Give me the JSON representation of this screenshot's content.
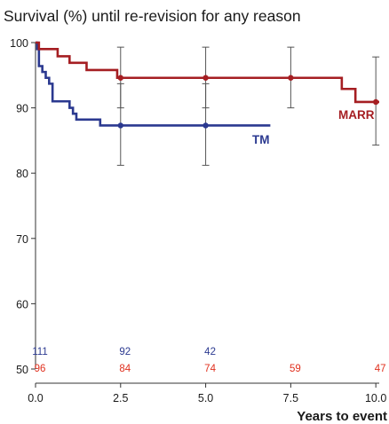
{
  "chart_data": {
    "type": "line",
    "title": "Survival (%) until re-revision for any reason",
    "xlabel": "Years to event",
    "ylabel": "",
    "xlim": [
      0,
      10.1
    ],
    "ylim": [
      50,
      100
    ],
    "xticks": [
      0,
      2.5,
      5,
      7.5,
      10
    ],
    "xtick_labels": [
      "0.0",
      "2.5",
      "5.0",
      "7.5",
      "10.0"
    ],
    "yticks": [
      50,
      60,
      70,
      80,
      90,
      100
    ],
    "ytick_labels": [
      "50",
      "60",
      "70",
      "80",
      "90",
      "100"
    ],
    "grid": false,
    "series": [
      {
        "name": "TM",
        "color": "#2b3990",
        "steps": [
          [
            0,
            100
          ],
          [
            0.05,
            99
          ],
          [
            0.1,
            96.4
          ],
          [
            0.2,
            95.5
          ],
          [
            0.3,
            94.6
          ],
          [
            0.4,
            93.7
          ],
          [
            0.5,
            91.0
          ],
          [
            1.0,
            90.0
          ],
          [
            1.1,
            89.1
          ],
          [
            1.2,
            88.2
          ],
          [
            1.9,
            87.3
          ],
          [
            6.9,
            87.3
          ]
        ],
        "points": [
          {
            "x": 2.5,
            "y": 87.3,
            "lower": 81.2,
            "upper": 93.7
          },
          {
            "x": 5.0,
            "y": 87.3,
            "lower": 81.2,
            "upper": 93.7
          }
        ]
      },
      {
        "name": "MARR",
        "color": "#a51e22",
        "steps": [
          [
            0,
            100
          ],
          [
            0.1,
            99.0
          ],
          [
            0.65,
            97.9
          ],
          [
            1.0,
            96.9
          ],
          [
            1.5,
            95.8
          ],
          [
            2.4,
            94.6
          ],
          [
            9.0,
            92.9
          ],
          [
            9.4,
            90.9
          ],
          [
            10.1,
            90.9
          ]
        ],
        "points": [
          {
            "x": 2.5,
            "y": 94.6,
            "lower": 90.0,
            "upper": 99.3
          },
          {
            "x": 5.0,
            "y": 94.6,
            "lower": 90.0,
            "upper": 99.3
          },
          {
            "x": 7.5,
            "y": 94.6,
            "lower": 90.0,
            "upper": 99.3
          },
          {
            "x": 10.0,
            "y": 90.9,
            "lower": 84.3,
            "upper": 97.8
          }
        ]
      }
    ],
    "at_risk": [
      {
        "series": "TM",
        "color": "#2b3990",
        "x": [
          0,
          2.5,
          5.0
        ],
        "labels": [
          "111",
          "92",
          "42"
        ]
      },
      {
        "series": "MARR",
        "color": "#e0301e",
        "x": [
          0,
          2.5,
          5.0,
          7.5,
          10.0
        ],
        "labels": [
          "96",
          "84",
          "74",
          "59",
          "47"
        ]
      }
    ]
  }
}
